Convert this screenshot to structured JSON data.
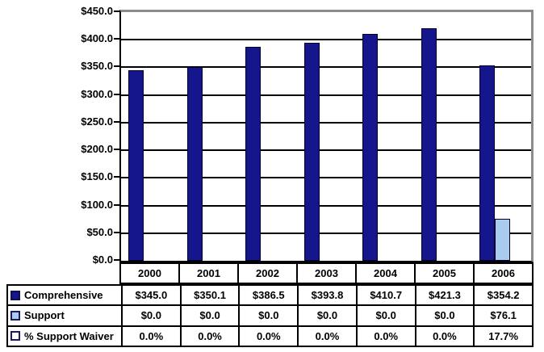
{
  "chart_data": {
    "type": "bar",
    "title": "",
    "categories": [
      "2000",
      "2001",
      "2002",
      "2003",
      "2004",
      "2005",
      "2006"
    ],
    "series": [
      {
        "name": "Comprehensive",
        "color": "#15158C",
        "unit": "$",
        "values": [
          345.0,
          350.1,
          386.5,
          393.8,
          410.7,
          421.3,
          354.2
        ]
      },
      {
        "name": "Support",
        "color": "#A9CCEE",
        "unit": "$",
        "values": [
          0.0,
          0.0,
          0.0,
          0.0,
          0.0,
          0.0,
          76.1
        ]
      },
      {
        "name": "% Support Waiver",
        "color": "#FFFFFF",
        "unit": "%",
        "plotted_as_bar": false,
        "values": [
          0.0,
          0.0,
          0.0,
          0.0,
          0.0,
          0.0,
          17.7
        ]
      }
    ],
    "xlabel": "",
    "ylabel": "",
    "ylim": [
      0,
      450
    ],
    "ytick_step": 50,
    "ytick_labels": [
      "$450.0",
      "$400.0",
      "$350.0",
      "$300.0",
      "$250.0",
      "$200.0",
      "$150.0",
      "$100.0",
      "$50.0",
      "$0.0"
    ],
    "grid": true,
    "gridline_color": "#000000",
    "plot_border_color": "#8C8C8C",
    "legend_position": "table-left"
  },
  "table": {
    "column_headers": [
      "2000",
      "2001",
      "2002",
      "2003",
      "2004",
      "2005",
      "2006"
    ],
    "rows": [
      {
        "label": "Comprehensive",
        "swatch": "navy-filled",
        "values": [
          "$345.0",
          "$350.1",
          "$386.5",
          "$393.8",
          "$410.7",
          "$421.3",
          "$354.2"
        ]
      },
      {
        "label": "Support",
        "swatch": "lightblue-filled",
        "values": [
          "$0.0",
          "$0.0",
          "$0.0",
          "$0.0",
          "$0.0",
          "$0.0",
          "$76.1"
        ]
      },
      {
        "label": "% Support Waiver",
        "swatch": "white-filled",
        "values": [
          "0.0%",
          "0.0%",
          "0.0%",
          "0.0%",
          "0.0%",
          "0.0%",
          "17.7%"
        ]
      }
    ]
  },
  "colors": {
    "comprehensive_bar": "#15158C",
    "support_bar": "#A9CCEE",
    "waiver_swatch": "#FFFFFF",
    "swatch_border": "#1B1B60",
    "gridline": "#000000",
    "plot_border": "#8C8C8C",
    "axis": "#000000"
  }
}
